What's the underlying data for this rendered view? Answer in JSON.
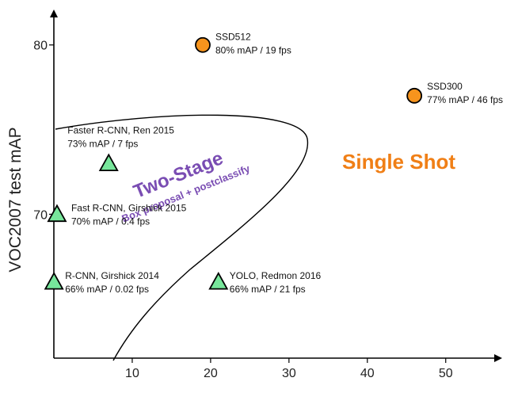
{
  "chart_data": {
    "type": "scatter",
    "title": "",
    "xlabel": "",
    "ylabel": "VOC2007 test mAP",
    "xlim": [
      0,
      57
    ],
    "ylim": [
      61.5,
      82
    ],
    "x_ticks": [
      10,
      20,
      30,
      40,
      50
    ],
    "y_ticks": [
      70,
      80
    ],
    "grid": false,
    "points": [
      {
        "label": "R-CNN, Girshick 2014",
        "detail": "66% mAP / 0.02 fps",
        "x": 0.02,
        "y": 66,
        "marker": "triangle",
        "color": "#77e69b"
      },
      {
        "label": "Fast R-CNN, Girshick 2015",
        "detail": "70% mAP / 0.4 fps",
        "x": 0.4,
        "y": 70,
        "marker": "triangle",
        "color": "#77e69b"
      },
      {
        "label": "Faster R-CNN, Ren 2015",
        "detail": "73% mAP / 7 fps",
        "x": 7,
        "y": 73,
        "marker": "triangle",
        "color": "#77e69b"
      },
      {
        "label": "YOLO, Redmon 2016",
        "detail": "66% mAP / 21 fps",
        "x": 21,
        "y": 66,
        "marker": "triangle",
        "color": "#77e69b"
      },
      {
        "label": "SSD300",
        "detail": "77% mAP / 46 fps",
        "x": 46,
        "y": 77,
        "marker": "circle",
        "color": "#f7941d"
      },
      {
        "label": "SSD512",
        "detail": "80% mAP / 19 fps",
        "x": 19,
        "y": 80,
        "marker": "circle",
        "color": "#f7941d"
      }
    ],
    "annotations": [
      {
        "text": "Single Shot",
        "color": "#f07f16"
      },
      {
        "text": "Two-Stage",
        "color": "#7a4db3"
      },
      {
        "text": "Box proposal + postclassify",
        "color": "#7a4db3"
      }
    ]
  }
}
